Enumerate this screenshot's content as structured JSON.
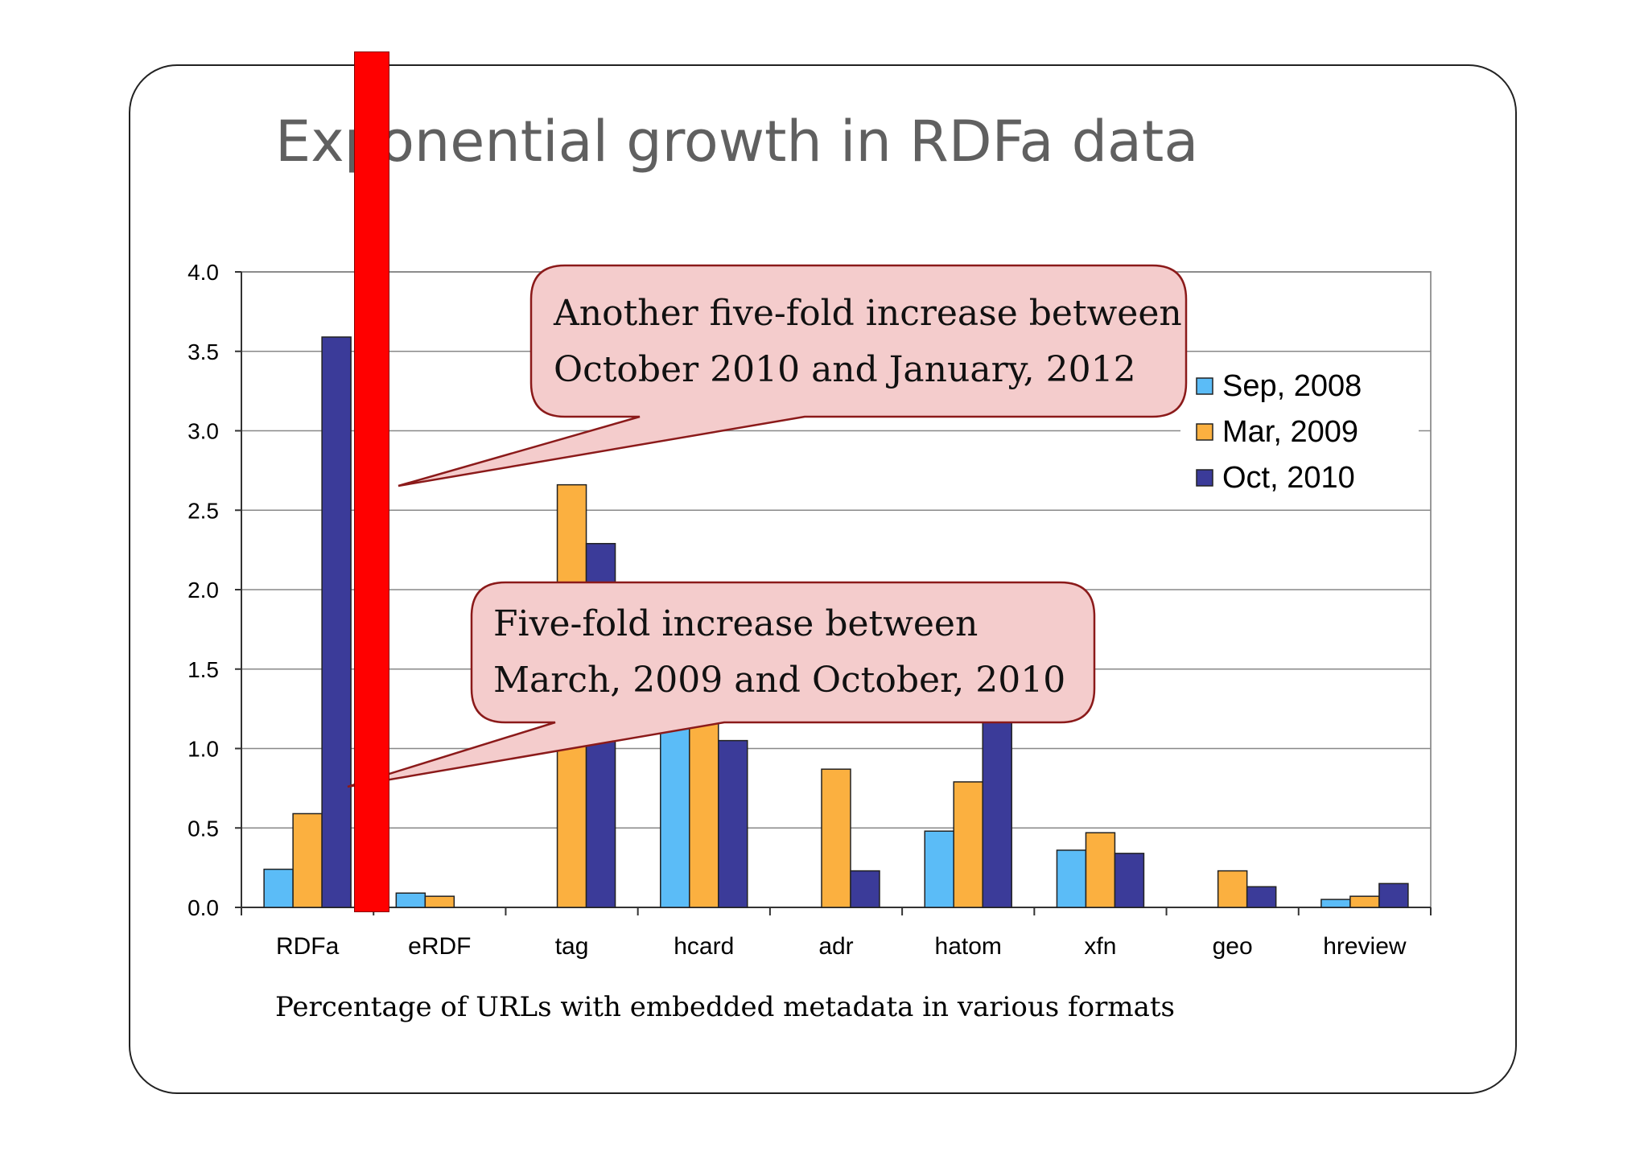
{
  "title": "Exponential growth in RDFa data",
  "caption": "Percentage of URLs with embedded metadata in various formats",
  "callouts": {
    "top": {
      "line1": "Another five-fold increase between",
      "line2": "October 2010 and January, 2012"
    },
    "bottom": {
      "line1": "Five-fold increase between",
      "line2": "March, 2009 and October, 2010"
    }
  },
  "colors": {
    "series": [
      "#5bbcf7",
      "#fbb040",
      "#3b3b99"
    ],
    "callout_fill": "#f4cccc",
    "callout_stroke": "#8b1a1a",
    "highlight": "#ff0000"
  },
  "chart_data": {
    "type": "bar",
    "categories": [
      "RDFa",
      "eRDF",
      "tag",
      "hcard",
      "adr",
      "hatom",
      "xfn",
      "geo",
      "hreview"
    ],
    "series": [
      {
        "name": "Sep, 2008",
        "values": [
          0.24,
          0.09,
          0,
          1.22,
          0,
          0.48,
          0.36,
          0,
          0.05
        ]
      },
      {
        "name": "Mar, 2009",
        "values": [
          0.59,
          0.07,
          2.66,
          1.32,
          0.87,
          0.79,
          0.47,
          0.23,
          0.07
        ]
      },
      {
        "name": "Oct, 2010",
        "values": [
          3.59,
          0,
          2.29,
          1.05,
          0.23,
          1.24,
          0.34,
          0.13,
          0.15
        ]
      }
    ],
    "ylim": [
      0,
      4.0
    ],
    "yticks": [
      "0.0",
      "0.5",
      "1.0",
      "1.5",
      "2.0",
      "2.5",
      "3.0",
      "3.5",
      "4.0"
    ],
    "grid": true,
    "legend": "top-right"
  }
}
